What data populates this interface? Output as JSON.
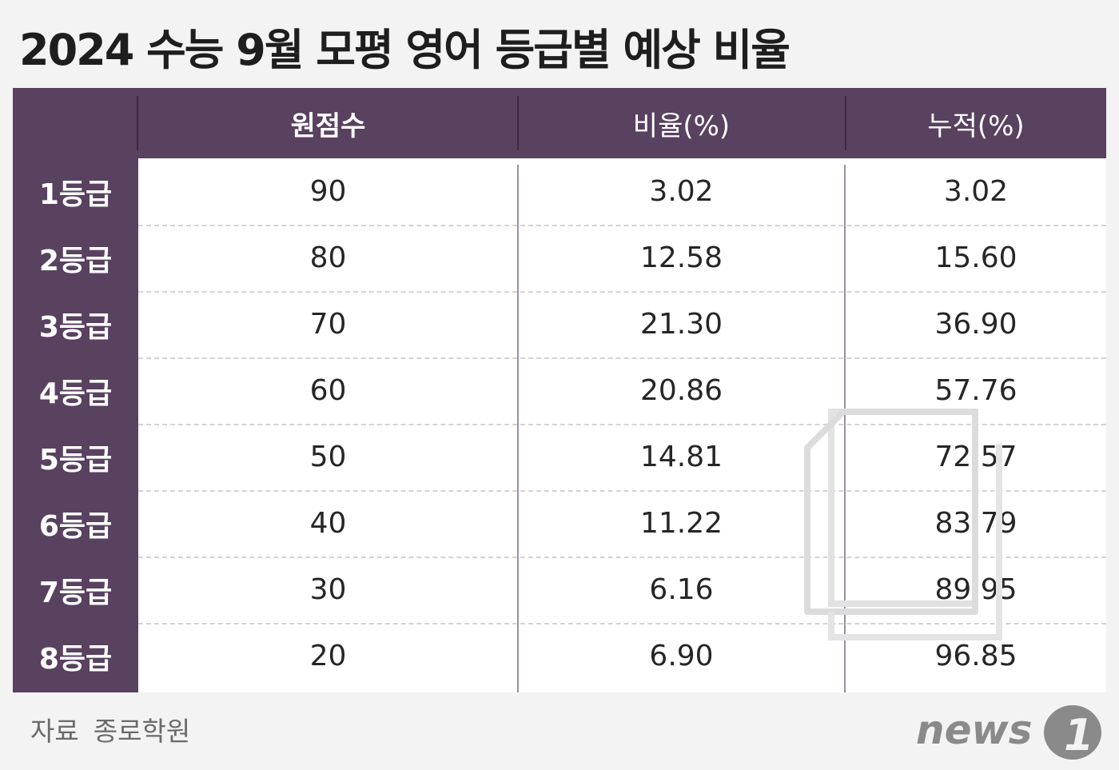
{
  "title": "2024 수능 9월 모평 영어 등급별 예상 비율",
  "source": {
    "label": "자료",
    "value": "종로학원"
  },
  "logo": {
    "text": "news",
    "mark": "1"
  },
  "colors": {
    "header_bg": "#594160",
    "background": "#f3f3f3",
    "cell_bg": "#ffffff"
  },
  "chart_data": {
    "type": "table",
    "title": "2024 수능 9월 모평 영어 등급별 예상 비율",
    "columns": [
      "원점수",
      "비율(%)",
      "누적(%)"
    ],
    "rows": [
      {
        "label": "1등급",
        "values": [
          "90",
          "3.02",
          "3.02"
        ]
      },
      {
        "label": "2등급",
        "values": [
          "80",
          "12.58",
          "15.60"
        ]
      },
      {
        "label": "3등급",
        "values": [
          "70",
          "21.30",
          "36.90"
        ]
      },
      {
        "label": "4등급",
        "values": [
          "60",
          "20.86",
          "57.76"
        ]
      },
      {
        "label": "5등급",
        "values": [
          "50",
          "14.81",
          "72.57"
        ]
      },
      {
        "label": "6등급",
        "values": [
          "40",
          "11.22",
          "83.79"
        ]
      },
      {
        "label": "7등급",
        "values": [
          "30",
          "6.16",
          "89.95"
        ]
      },
      {
        "label": "8등급",
        "values": [
          "20",
          "6.90",
          "96.85"
        ]
      }
    ]
  }
}
